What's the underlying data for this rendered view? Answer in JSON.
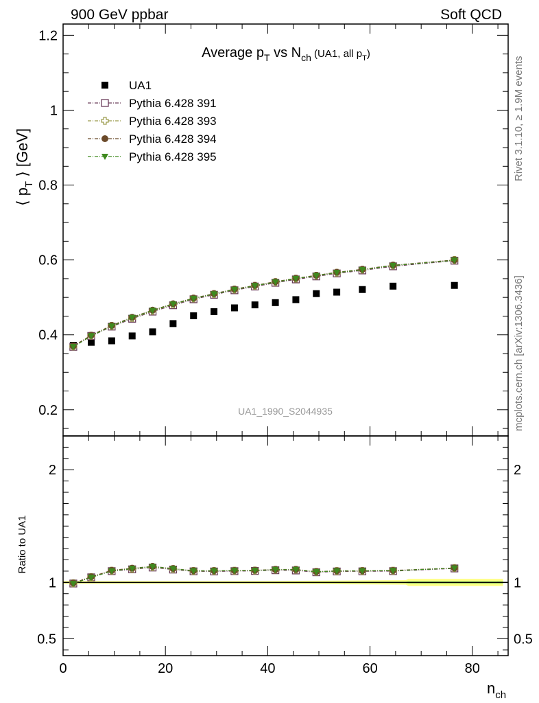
{
  "header": {
    "left": "900 GeV ppbar",
    "right": "Soft QCD"
  },
  "side": {
    "rivet": "Rivet 3.1.10, ≥ 1.9M events",
    "mcplots": "mcplots.cern.ch [arXiv:1306.3436]"
  },
  "watermark": "UA1_1990_S2044935",
  "chart_data": [
    {
      "type": "scatter",
      "title": "Average p_T vs N_ch (UA1, all p_T)",
      "ylabel": "⟨ p_T ⟩ [GeV]",
      "ylim": [
        0.13,
        1.23
      ],
      "yticks": [
        "0.2",
        "0.4",
        "0.6",
        "0.8",
        "1",
        "1.2"
      ],
      "legend_position": "top-left",
      "x": [
        2,
        5.5,
        9.5,
        13.5,
        17.5,
        21.5,
        25.5,
        29.5,
        33.5,
        37.5,
        41.5,
        45.5,
        49.5,
        53.5,
        58.5,
        64.5,
        76.5
      ],
      "series": [
        {
          "name": "UA1",
          "color": "#000000",
          "marker": "square-filled",
          "values": [
            0.372,
            0.38,
            0.384,
            0.397,
            0.408,
            0.43,
            0.451,
            0.462,
            0.472,
            0.48,
            0.486,
            0.494,
            0.51,
            0.514,
            0.521,
            0.53,
            0.532
          ]
        },
        {
          "name": "Pythia 6.428 391",
          "color": "#6b3d5a",
          "marker": "square-open",
          "values": [
            0.368,
            0.397,
            0.422,
            0.443,
            0.462,
            0.479,
            0.495,
            0.507,
            0.519,
            0.529,
            0.539,
            0.548,
            0.556,
            0.564,
            0.572,
            0.583,
            0.598
          ]
        },
        {
          "name": "Pythia 6.428 393",
          "color": "#9a9a4a",
          "marker": "cross-open",
          "values": [
            0.369,
            0.398,
            0.424,
            0.445,
            0.464,
            0.481,
            0.497,
            0.509,
            0.521,
            0.531,
            0.541,
            0.55,
            0.558,
            0.566,
            0.574,
            0.585,
            0.6
          ]
        },
        {
          "name": "Pythia 6.428 394",
          "color": "#6b4a2a",
          "marker": "circle-filled",
          "values": [
            0.37,
            0.399,
            0.425,
            0.447,
            0.466,
            0.483,
            0.498,
            0.51,
            0.522,
            0.532,
            0.542,
            0.551,
            0.559,
            0.567,
            0.575,
            0.586,
            0.6
          ]
        },
        {
          "name": "Pythia 6.428 395",
          "color": "#3f8a1f",
          "marker": "triangle-down-filled",
          "values": [
            0.368,
            0.397,
            0.423,
            0.446,
            0.465,
            0.482,
            0.497,
            0.509,
            0.521,
            0.531,
            0.541,
            0.55,
            0.558,
            0.566,
            0.574,
            0.585,
            0.599
          ]
        }
      ]
    },
    {
      "type": "scatter",
      "xlabel": "n_ch",
      "ylabel": "Ratio to UA1",
      "xlim": [
        0,
        87
      ],
      "ylim": [
        0.35,
        2.3
      ],
      "xticks": [
        "0",
        "20",
        "40",
        "60",
        "80"
      ],
      "yticks": [
        "0.5",
        "1",
        "2"
      ],
      "reference_line": 1,
      "uncertainty_band_color": "#ffff66",
      "x": [
        2,
        5.5,
        9.5,
        13.5,
        17.5,
        21.5,
        25.5,
        29.5,
        33.5,
        37.5,
        41.5,
        45.5,
        49.5,
        53.5,
        58.5,
        64.5,
        76.5
      ],
      "series": [
        {
          "name": "Pythia 6.428 391",
          "color": "#6b3d5a",
          "marker": "square-open",
          "values": [
            0.99,
            1.045,
            1.1,
            1.116,
            1.132,
            1.114,
            1.098,
            1.097,
            1.1,
            1.102,
            1.108,
            1.106,
            1.09,
            1.097,
            1.098,
            1.1,
            1.124
          ]
        },
        {
          "name": "Pythia 6.428 393",
          "color": "#9a9a4a",
          "marker": "cross-open",
          "values": [
            0.992,
            1.047,
            1.104,
            1.121,
            1.137,
            1.119,
            1.102,
            1.102,
            1.104,
            1.106,
            1.113,
            1.113,
            1.094,
            1.101,
            1.102,
            1.104,
            1.128
          ]
        },
        {
          "name": "Pythia 6.428 394",
          "color": "#6b4a2a",
          "marker": "circle-filled",
          "values": [
            0.995,
            1.05,
            1.107,
            1.126,
            1.142,
            1.123,
            1.104,
            1.104,
            1.106,
            1.108,
            1.115,
            1.115,
            1.096,
            1.103,
            1.104,
            1.106,
            1.128
          ]
        },
        {
          "name": "Pythia 6.428 395",
          "color": "#3f8a1f",
          "marker": "triangle-down-filled",
          "values": [
            0.989,
            1.044,
            1.101,
            1.123,
            1.14,
            1.121,
            1.102,
            1.102,
            1.104,
            1.106,
            1.113,
            1.113,
            1.094,
            1.101,
            1.102,
            1.104,
            1.126
          ]
        }
      ]
    }
  ]
}
